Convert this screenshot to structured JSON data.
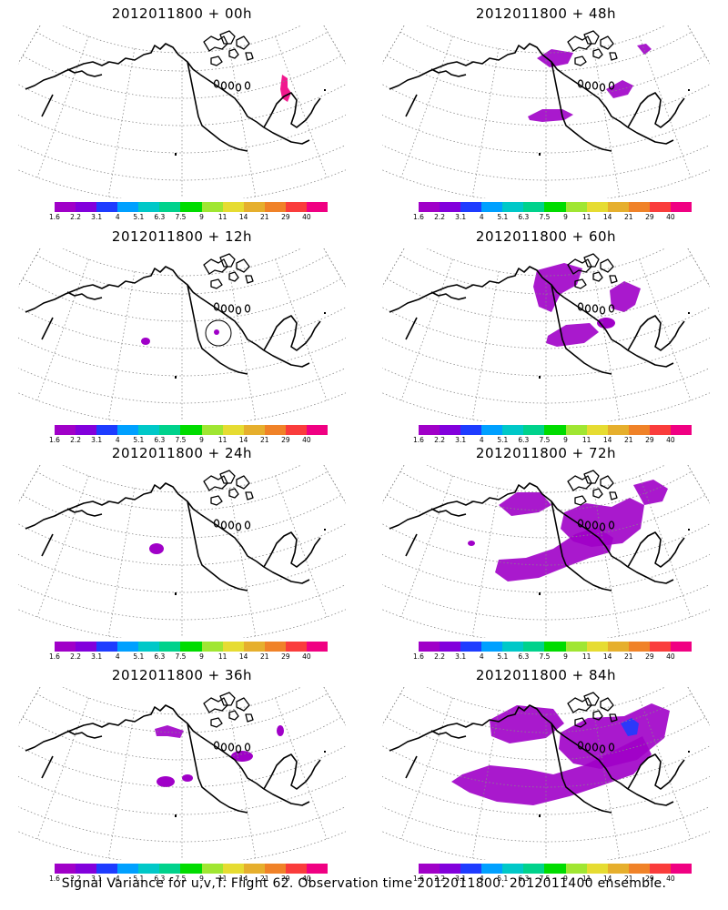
{
  "colorbar": {
    "colors": [
      "#a000c8",
      "#8200dc",
      "#1e3cff",
      "#00a0ff",
      "#00c8c8",
      "#00d28c",
      "#00dc00",
      "#a0e632",
      "#e6dc32",
      "#e6af2d",
      "#f08228",
      "#fa3c3c",
      "#f00082"
    ],
    "labels": [
      "1.6",
      "2.2",
      "3.1",
      "4",
      "5.1",
      "6.3",
      "7.5",
      "9",
      "11",
      "14",
      "21",
      "29",
      "40"
    ]
  },
  "panels": [
    {
      "id": "p00",
      "title": "2012011800 + 00h"
    },
    {
      "id": "p48",
      "title": "2012011800 + 48h"
    },
    {
      "id": "p12",
      "title": "2012011800 + 12h"
    },
    {
      "id": "p60",
      "title": "2012011800 + 60h"
    },
    {
      "id": "p24",
      "title": "2012011800 + 24h"
    },
    {
      "id": "p72",
      "title": "2012011800 + 72h"
    },
    {
      "id": "p36",
      "title": "2012011800 + 36h"
    },
    {
      "id": "p84",
      "title": "2012011800 + 84h"
    }
  ],
  "caption": "Signal Variance for u,v,T. Flight 62. Observation time 2012011800. 2012011400 ensemble."
}
